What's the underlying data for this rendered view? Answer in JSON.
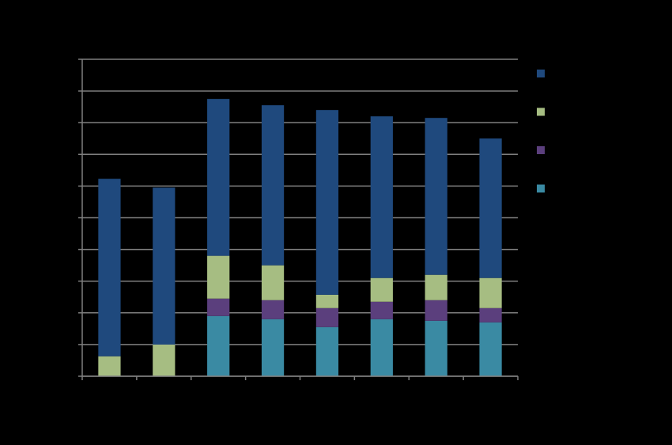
{
  "chart_data": {
    "type": "bar",
    "stacked": true,
    "title": "",
    "xlabel": "",
    "ylabel": "",
    "ylim": [
      0,
      10
    ],
    "grid": true,
    "legend_position": "right",
    "categories": [
      "",
      "",
      "",
      "",
      "",
      "",
      "",
      ""
    ],
    "series": [
      {
        "name": "",
        "color": "#3a8aa3",
        "values": [
          0,
          0,
          1.9,
          1.8,
          1.55,
          1.8,
          1.75,
          1.7
        ]
      },
      {
        "name": "",
        "color": "#5b3f7d",
        "values": [
          0,
          0,
          0.55,
          0.6,
          0.6,
          0.55,
          0.65,
          0.45
        ]
      },
      {
        "name": "",
        "color": "#a6bd82",
        "values": [
          0.63,
          1.0,
          1.35,
          1.1,
          0.42,
          0.75,
          0.8,
          0.95
        ]
      },
      {
        "name": "",
        "color": "#1f497d",
        "values": [
          5.6,
          4.95,
          4.95,
          5.05,
          5.83,
          5.1,
          4.95,
          4.4
        ]
      }
    ],
    "legend_order": [
      3,
      2,
      1,
      0
    ]
  },
  "colors": {
    "background": "#000000",
    "grid": "#7f7f7f",
    "axis": "#7f7f7f"
  }
}
